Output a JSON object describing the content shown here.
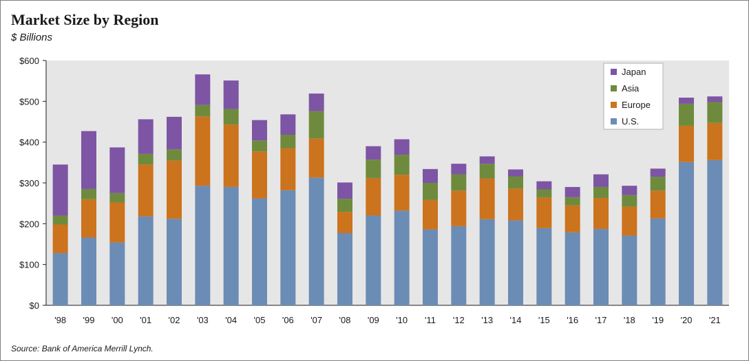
{
  "chart_data": {
    "type": "bar",
    "stacked": true,
    "title": "Market Size by Region",
    "subtitle": "$ Billions",
    "source": "Source: Bank of America Merrill Lynch.",
    "categories": [
      "'98",
      "'99",
      "'00",
      "'01",
      "'02",
      "'03",
      "'04",
      "'05",
      "'06",
      "'07",
      "'08",
      "'09",
      "'10",
      "'11",
      "'12",
      "'13",
      "'14",
      "'15",
      "'16",
      "'17",
      "'18",
      "'19",
      "'20",
      "'21"
    ],
    "ylim": [
      0,
      600
    ],
    "yticks": [
      0,
      100,
      200,
      300,
      400,
      500,
      600
    ],
    "ytick_labels": [
      "$0",
      "$100",
      "$200",
      "$300",
      "$400",
      "$500",
      "$600"
    ],
    "grid": false,
    "legend_position": "top-right",
    "series": [
      {
        "name": "U.S.",
        "color": "#6b8cb5",
        "values": [
          128,
          166,
          154,
          218,
          212,
          293,
          290,
          262,
          282,
          313,
          177,
          220,
          232,
          186,
          194,
          211,
          208,
          189,
          179,
          187,
          171,
          213,
          351,
          356
        ]
      },
      {
        "name": "Europe",
        "color": "#cc731e",
        "values": [
          70,
          94,
          98,
          127,
          143,
          170,
          153,
          115,
          103,
          96,
          52,
          92,
          88,
          72,
          87,
          100,
          78,
          75,
          66,
          76,
          71,
          68,
          89,
          91
        ]
      },
      {
        "name": "Asia",
        "color": "#6e8b3d",
        "values": [
          22,
          25,
          23,
          26,
          27,
          28,
          38,
          27,
          33,
          67,
          32,
          45,
          49,
          42,
          40,
          36,
          30,
          20,
          20,
          27,
          28,
          34,
          54,
          51
        ]
      },
      {
        "name": "Japan",
        "color": "#7d55a4",
        "values": [
          125,
          142,
          112,
          85,
          80,
          75,
          70,
          50,
          50,
          43,
          40,
          33,
          38,
          34,
          26,
          18,
          17,
          20,
          25,
          31,
          23,
          20,
          15,
          14
        ]
      }
    ],
    "legend_order": [
      "Japan",
      "Asia",
      "Europe",
      "U.S."
    ]
  }
}
